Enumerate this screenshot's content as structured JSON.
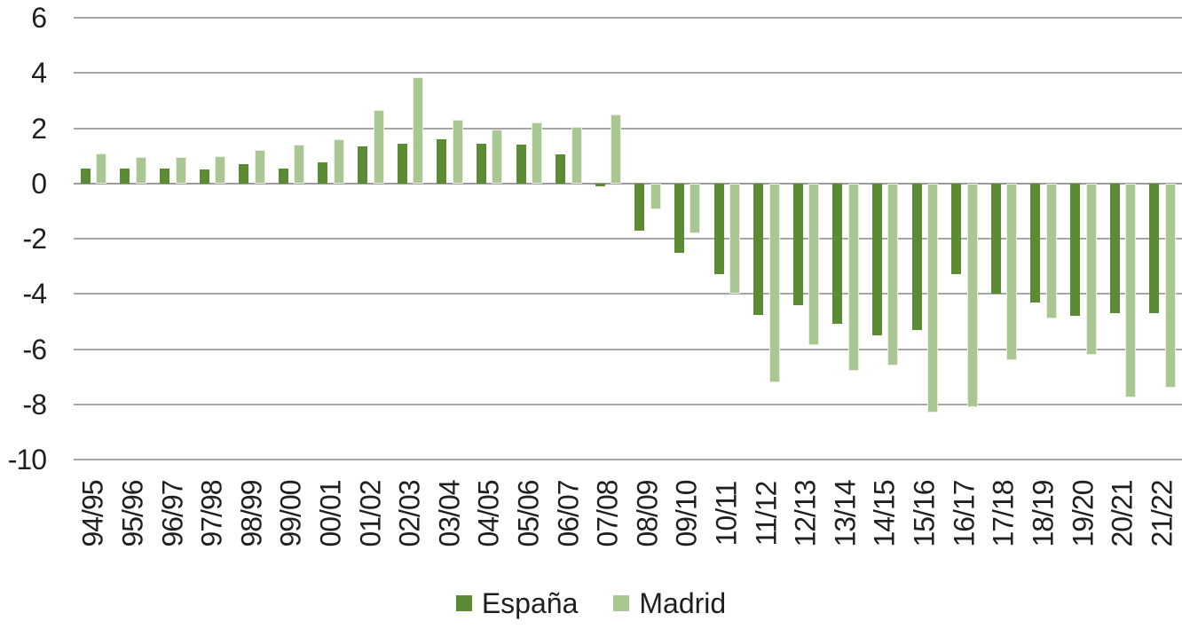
{
  "chart_data": {
    "type": "bar",
    "title": "",
    "xlabel": "",
    "ylabel": "",
    "categories": [
      "94/95",
      "95/96",
      "96/97",
      "97/98",
      "98/99",
      "99/00",
      "00/01",
      "01/02",
      "02/03",
      "03/04",
      "04/05",
      "05/06",
      "06/07",
      "07/08",
      "08/09",
      "09/10",
      "10/11",
      "11/12",
      "12/13",
      "13/14",
      "14/15",
      "15/16",
      "16/17",
      "17/18",
      "18/19",
      "19/20",
      "20/21",
      "21/22"
    ],
    "series": [
      {
        "name": "España",
        "color": "#5b8c33",
        "values": [
          0.55,
          0.55,
          0.55,
          0.5,
          0.7,
          0.55,
          0.75,
          1.35,
          1.45,
          1.6,
          1.45,
          1.4,
          1.05,
          -0.1,
          -1.7,
          -2.5,
          -3.3,
          -4.75,
          -4.4,
          -5.1,
          -5.5,
          -5.3,
          -3.3,
          -4.0,
          -4.3,
          -4.8,
          -4.7,
          -4.7
        ]
      },
      {
        "name": "Madrid",
        "color": "#a9c792",
        "values": [
          1.1,
          0.95,
          0.95,
          1.0,
          1.2,
          1.4,
          1.6,
          2.65,
          3.85,
          2.3,
          1.95,
          2.2,
          2.05,
          2.5,
          -0.95,
          -1.8,
          -4.0,
          -7.2,
          -5.85,
          -6.8,
          -6.6,
          -8.3,
          -8.1,
          -6.4,
          -4.9,
          -6.2,
          -7.75,
          -7.4
        ]
      }
    ],
    "ylim": [
      -10,
      6
    ],
    "yticks": [
      6,
      4,
      2,
      0,
      -2,
      -4,
      -6,
      -8,
      -10
    ],
    "grid": true,
    "legend_position": "bottom",
    "colors": {
      "gridline": "#a6a6a6",
      "zero_line": "#9b9b9b",
      "text": "#1f1f1f",
      "background": "#ffffff"
    }
  }
}
